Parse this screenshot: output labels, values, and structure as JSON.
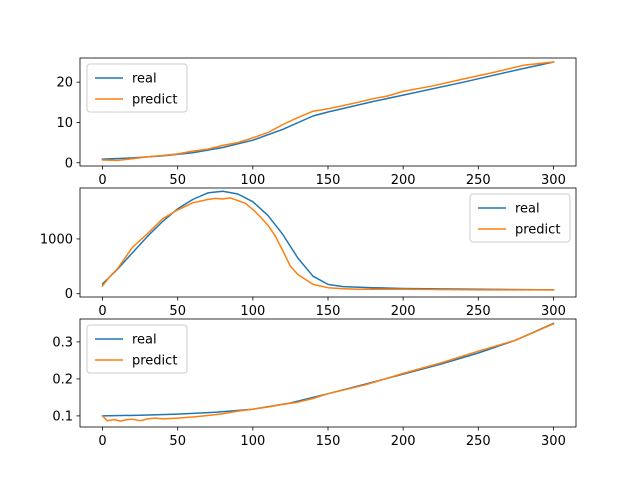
{
  "figure": {
    "background": "#ffffff"
  },
  "chart_data": [
    {
      "type": "line",
      "title": "",
      "xlabel": "",
      "ylabel": "",
      "xlim": [
        -15,
        315
      ],
      "ylim": [
        -0.8,
        26
      ],
      "xticks": [
        0,
        50,
        100,
        150,
        200,
        250,
        300
      ],
      "xtick_labels": [
        "0",
        "50",
        "100",
        "150",
        "200",
        "250",
        "300"
      ],
      "yticks": [
        0,
        10,
        20
      ],
      "ytick_labels": [
        "0",
        "10",
        "20"
      ],
      "legend": {
        "position": "upper-left"
      },
      "grid": false,
      "series": [
        {
          "name": "real",
          "color": "#1f77b4",
          "x": [
            0,
            20,
            40,
            60,
            80,
            100,
            120,
            140,
            150,
            180,
            200,
            240,
            280,
            300
          ],
          "y": [
            0.9,
            1.2,
            1.7,
            2.5,
            3.8,
            5.6,
            8.3,
            11.6,
            12.6,
            15.2,
            16.8,
            20.0,
            23.4,
            25.0
          ]
        },
        {
          "name": "predict",
          "color": "#ff7f0e",
          "x": [
            0,
            10,
            20,
            30,
            40,
            50,
            60,
            70,
            80,
            90,
            100,
            110,
            120,
            130,
            140,
            150,
            160,
            170,
            180,
            190,
            200,
            220,
            240,
            260,
            280,
            300
          ],
          "y": [
            0.7,
            0.6,
            1.0,
            1.5,
            1.8,
            2.2,
            2.9,
            3.4,
            4.3,
            5.0,
            6.2,
            7.5,
            9.5,
            11.2,
            12.8,
            13.4,
            14.2,
            15.0,
            15.9,
            16.6,
            17.7,
            19.1,
            20.8,
            22.4,
            24.2,
            25.0
          ]
        }
      ]
    },
    {
      "type": "line",
      "title": "",
      "xlabel": "",
      "ylabel": "",
      "xlim": [
        -15,
        315
      ],
      "ylim": [
        -60,
        1930
      ],
      "xticks": [
        0,
        50,
        100,
        150,
        200,
        250,
        300
      ],
      "xtick_labels": [
        "0",
        "50",
        "100",
        "150",
        "200",
        "250",
        "300"
      ],
      "yticks": [
        0,
        1000
      ],
      "ytick_labels": [
        "0",
        "1000"
      ],
      "legend": {
        "position": "upper-right"
      },
      "grid": false,
      "series": [
        {
          "name": "real",
          "color": "#1f77b4",
          "x": [
            0,
            10,
            20,
            30,
            40,
            50,
            60,
            70,
            80,
            90,
            100,
            110,
            120,
            130,
            140,
            150,
            160,
            180,
            200,
            250,
            300
          ],
          "y": [
            180,
            450,
            750,
            1050,
            1320,
            1550,
            1720,
            1840,
            1870,
            1820,
            1680,
            1430,
            1080,
            650,
            320,
            170,
            130,
            110,
            95,
            80,
            70
          ]
        },
        {
          "name": "predict",
          "color": "#ff7f0e",
          "x": [
            0,
            5,
            10,
            20,
            30,
            40,
            50,
            60,
            70,
            75,
            80,
            85,
            90,
            95,
            100,
            105,
            110,
            115,
            120,
            125,
            130,
            140,
            150,
            160,
            170,
            200,
            250,
            300
          ],
          "y": [
            140,
            320,
            460,
            850,
            1100,
            1370,
            1530,
            1660,
            1720,
            1740,
            1730,
            1750,
            1700,
            1650,
            1540,
            1400,
            1250,
            1050,
            780,
            500,
            350,
            170,
            110,
            90,
            80,
            80,
            70,
            70
          ]
        }
      ]
    },
    {
      "type": "line",
      "title": "",
      "xlabel": "",
      "ylabel": "",
      "xlim": [
        -15,
        315
      ],
      "ylim": [
        0.07,
        0.362
      ],
      "xticks": [
        0,
        50,
        100,
        150,
        200,
        250,
        300
      ],
      "xtick_labels": [
        "0",
        "50",
        "100",
        "150",
        "200",
        "250",
        "300"
      ],
      "yticks": [
        0.1,
        0.2,
        0.3
      ],
      "ytick_labels": [
        "0.1",
        "0.2",
        "0.3"
      ],
      "legend": {
        "position": "upper-left"
      },
      "grid": false,
      "series": [
        {
          "name": "real",
          "color": "#1f77b4",
          "x": [
            0,
            25,
            50,
            75,
            100,
            125,
            150,
            175,
            200,
            225,
            250,
            275,
            300
          ],
          "y": [
            0.1,
            0.102,
            0.105,
            0.11,
            0.118,
            0.135,
            0.16,
            0.186,
            0.213,
            0.24,
            0.27,
            0.305,
            0.35
          ]
        },
        {
          "name": "predict",
          "color": "#ff7f0e",
          "x": [
            0,
            3,
            8,
            12,
            16,
            20,
            25,
            30,
            35,
            40,
            50,
            60,
            70,
            80,
            90,
            100,
            110,
            120,
            130,
            140,
            150,
            175,
            200,
            225,
            250,
            275,
            300
          ],
          "y": [
            0.1,
            0.087,
            0.09,
            0.086,
            0.09,
            0.091,
            0.087,
            0.092,
            0.094,
            0.092,
            0.094,
            0.097,
            0.101,
            0.106,
            0.113,
            0.118,
            0.124,
            0.131,
            0.137,
            0.147,
            0.16,
            0.184,
            0.215,
            0.243,
            0.275,
            0.305,
            0.349
          ]
        }
      ]
    }
  ]
}
